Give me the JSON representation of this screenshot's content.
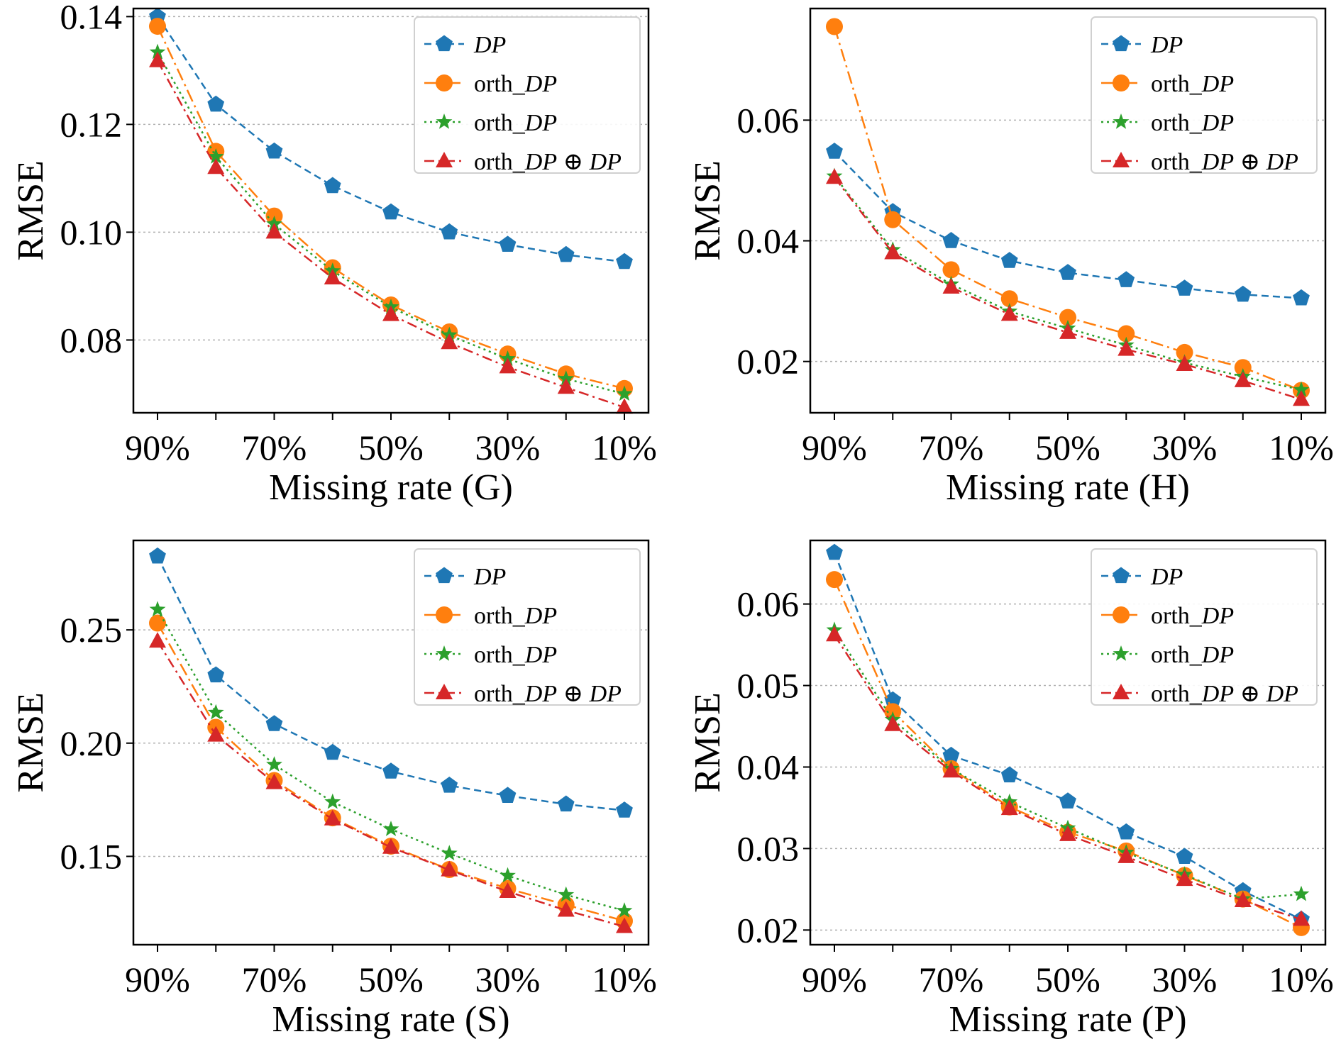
{
  "series_styles": [
    {
      "key": "dp",
      "color": "#1f77b4",
      "marker": "pentagon",
      "dash": "10,6"
    },
    {
      "key": "odp",
      "color": "#ff7f0e",
      "marker": "circle",
      "dash": "18,6,3,6"
    },
    {
      "key": "oddp",
      "color": "#2ca02c",
      "marker": "star",
      "dash": "3,5"
    },
    {
      "key": "both",
      "color": "#d62728",
      "marker": "triangle",
      "dash": "14,6,3,6"
    }
  ],
  "legend": {
    "items": [
      {
        "prefix": "",
        "main": "DP"
      },
      {
        "prefix": "orth_",
        "main": "DP"
      },
      {
        "prefix": "orth_",
        "main": "DP"
      },
      {
        "prefix": "orth_",
        "main": "DP ⊕ DP"
      }
    ]
  },
  "chart_data": [
    {
      "type": "line",
      "xlabel": "Missing rate (G)",
      "ylabel": "RMSE",
      "x": [
        "90%",
        "80%",
        "70%",
        "60%",
        "50%",
        "40%",
        "30%",
        "20%",
        "10%"
      ],
      "xticks": [
        "90%",
        "70%",
        "50%",
        "30%",
        "10%"
      ],
      "ylim": [
        0.0665,
        0.1415
      ],
      "yticks": [
        "0.08",
        "0.10",
        "0.12",
        "0.14"
      ],
      "grid": "horizontal dotted",
      "legend_position": "top-right",
      "series": [
        {
          "name": "DP",
          "values": [
            0.14,
            0.1237,
            0.115,
            0.1086,
            0.1037,
            0.1,
            0.0977,
            0.0958,
            0.0945
          ]
        },
        {
          "name": "orth_DP",
          "values": [
            0.1382,
            0.115,
            0.103,
            0.0934,
            0.0865,
            0.0815,
            0.0774,
            0.0737,
            0.071
          ]
        },
        {
          "name": "orth_DP",
          "values": [
            0.1334,
            0.114,
            0.1015,
            0.0928,
            0.0861,
            0.0809,
            0.0765,
            0.0728,
            0.07
          ]
        },
        {
          "name": "orth_DP ⊕ DP",
          "values": [
            0.1318,
            0.112,
            0.1,
            0.0915,
            0.0847,
            0.0795,
            0.075,
            0.0712,
            0.0675
          ]
        }
      ]
    },
    {
      "type": "line",
      "xlabel": "Missing rate (H)",
      "ylabel": "RMSE",
      "x": [
        "90%",
        "80%",
        "70%",
        "60%",
        "50%",
        "40%",
        "30%",
        "20%",
        "10%"
      ],
      "xticks": [
        "90%",
        "70%",
        "50%",
        "30%",
        "10%"
      ],
      "ylim": [
        0.0115,
        0.0785
      ],
      "yticks": [
        "0.02",
        "0.04",
        "0.06"
      ],
      "grid": "horizontal dotted",
      "legend_position": "top-right",
      "series": [
        {
          "name": "DP",
          "values": [
            0.0548,
            0.0448,
            0.04,
            0.0367,
            0.0347,
            0.0335,
            0.0321,
            0.0311,
            0.0305
          ]
        },
        {
          "name": "orth_DP",
          "values": [
            0.0755,
            0.0435,
            0.0352,
            0.0304,
            0.0273,
            0.0246,
            0.0215,
            0.019,
            0.0152
          ]
        },
        {
          "name": "orth_DP",
          "values": [
            0.0507,
            0.0385,
            0.0328,
            0.0283,
            0.0255,
            0.0227,
            0.0198,
            0.0175,
            0.0153
          ]
        },
        {
          "name": "orth_DP ⊕ DP",
          "values": [
            0.0505,
            0.038,
            0.0323,
            0.0278,
            0.0248,
            0.022,
            0.0195,
            0.0168,
            0.0137
          ]
        }
      ]
    },
    {
      "type": "line",
      "xlabel": "Missing rate (S)",
      "ylabel": "RMSE",
      "x": [
        "90%",
        "80%",
        "70%",
        "60%",
        "50%",
        "40%",
        "30%",
        "20%",
        "10%"
      ],
      "xticks": [
        "90%",
        "70%",
        "50%",
        "30%",
        "10%"
      ],
      "ylim": [
        0.111,
        0.2895
      ],
      "yticks": [
        "0.15",
        "0.20",
        "0.25"
      ],
      "grid": "horizontal dotted",
      "legend_position": "top-right",
      "series": [
        {
          "name": "DP",
          "values": [
            0.2825,
            0.23,
            0.2085,
            0.1958,
            0.1875,
            0.1813,
            0.1768,
            0.173,
            0.1703
          ]
        },
        {
          "name": "orth_DP",
          "values": [
            0.253,
            0.207,
            0.1835,
            0.167,
            0.1545,
            0.1442,
            0.1358,
            0.1286,
            0.1215
          ]
        },
        {
          "name": "orth_DP",
          "values": [
            0.259,
            0.2135,
            0.1905,
            0.174,
            0.162,
            0.1513,
            0.1415,
            0.133,
            0.126
          ]
        },
        {
          "name": "orth_DP ⊕ DP",
          "values": [
            0.245,
            0.2035,
            0.1825,
            0.1665,
            0.154,
            0.144,
            0.1345,
            0.1262,
            0.119
          ]
        }
      ]
    },
    {
      "type": "line",
      "xlabel": "Missing rate (P)",
      "ylabel": "RMSE",
      "x": [
        "90%",
        "80%",
        "70%",
        "60%",
        "50%",
        "40%",
        "30%",
        "20%",
        "10%"
      ],
      "xticks": [
        "90%",
        "70%",
        "50%",
        "30%",
        "10%"
      ],
      "ylim": [
        0.0182,
        0.0678
      ],
      "yticks": [
        "0.02",
        "0.03",
        "0.04",
        "0.05",
        "0.06"
      ],
      "grid": "horizontal dotted",
      "legend_position": "top-right",
      "series": [
        {
          "name": "DP",
          "values": [
            0.0663,
            0.0482,
            0.0414,
            0.039,
            0.0358,
            0.032,
            0.029,
            0.0248,
            0.0213
          ]
        },
        {
          "name": "orth_DP",
          "values": [
            0.063,
            0.0468,
            0.0398,
            0.0351,
            0.032,
            0.0297,
            0.0267,
            0.0238,
            0.0203
          ]
        },
        {
          "name": "orth_DP",
          "values": [
            0.0568,
            0.0458,
            0.0398,
            0.0357,
            0.0325,
            0.0295,
            0.0268,
            0.0238,
            0.0244
          ]
        },
        {
          "name": "orth_DP ⊕ DP",
          "values": [
            0.0562,
            0.0452,
            0.0395,
            0.0349,
            0.0317,
            0.029,
            0.0262,
            0.0236,
            0.0213
          ]
        }
      ]
    }
  ]
}
